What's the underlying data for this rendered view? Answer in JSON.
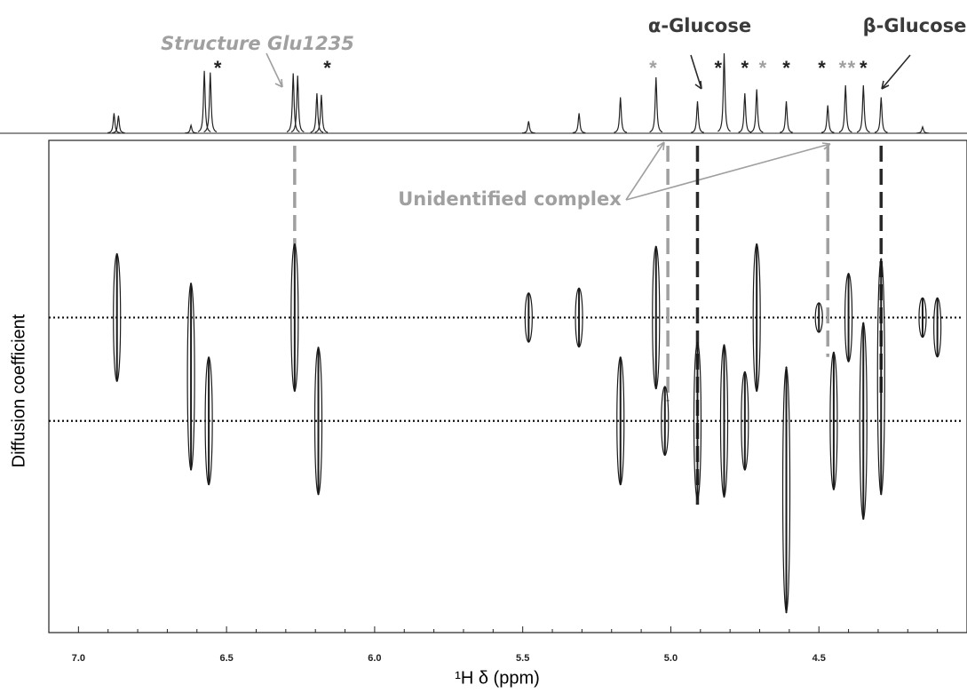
{
  "chart_data": {
    "type": "dosy",
    "x_label": "¹H δ (ppm)",
    "y_label": "Diffusion coefficient",
    "xlim": [
      7.1,
      4.0
    ],
    "xticks": [
      {
        "value": 7,
        "label": "7.0"
      },
      6.5,
      {
        "value": 6,
        "label": "6.0"
      },
      5.5,
      {
        "value": 5,
        "label": "5.0"
      },
      4.5
    ],
    "xminorticks": [
      6.9,
      6.8,
      6.7,
      6.6,
      6.4,
      6.3,
      6.2,
      6.1,
      5.9,
      5.8,
      5.7,
      5.6,
      5.4,
      5.3,
      5.2,
      5.1,
      4.9,
      4.8,
      4.7,
      4.6,
      4.4,
      4.3,
      4.2,
      4.1
    ],
    "ylim": [
      0,
      100
    ],
    "spectrum": {
      "ylim": [
        0,
        100
      ],
      "color": "#222222",
      "x": [
        6.88,
        6.865,
        6.62,
        6.575,
        6.555,
        6.275,
        6.26,
        6.195,
        6.18,
        5.48,
        5.31,
        5.17,
        5.05,
        4.91,
        4.82,
        4.75,
        4.71,
        4.61,
        4.47,
        4.41,
        4.35,
        4.29,
        4.15
      ],
      "values": [
        25,
        22,
        10,
        78,
        76,
        75,
        72,
        50,
        48,
        15,
        25,
        45,
        70,
        40,
        100,
        50,
        55,
        40,
        35,
        60,
        60,
        45,
        8
      ]
    },
    "peaks": {
      "color": "#1a1a1a",
      "x": [
        6.87,
        6.62,
        6.56,
        6.27,
        6.19,
        5.48,
        5.31,
        5.17,
        5.05,
        5.02,
        4.91,
        4.82,
        4.75,
        4.71,
        4.61,
        4.5,
        4.45,
        4.4,
        4.35,
        4.29,
        4.15,
        4.1
      ],
      "y": [
        64,
        52,
        43,
        64,
        43,
        64,
        64,
        43,
        64,
        43,
        43,
        43,
        43,
        64,
        29,
        64,
        43,
        64,
        43,
        52,
        64,
        62
      ],
      "span": [
        26,
        38,
        26,
        30,
        30,
        10,
        12,
        26,
        29,
        14,
        32,
        31,
        20,
        30,
        50,
        6,
        28,
        18,
        40,
        48,
        8,
        12
      ]
    },
    "reference_lines": [
      64,
      43
    ],
    "markers": [
      {
        "x": 6.27,
        "to": 78,
        "color": "#a0a0a0"
      },
      {
        "x": 5.01,
        "to": 47,
        "color": "#a0a0a0"
      },
      {
        "x": 4.91,
        "to": 26,
        "color": "#2a2a2a"
      },
      {
        "x": 4.47,
        "to": 56,
        "color": "#a0a0a0"
      },
      {
        "x": 4.29,
        "to": 48,
        "color": "#2a2a2a"
      }
    ],
    "asterisks": [
      {
        "x": 6.53,
        "text": "*",
        "color": "#222222"
      },
      {
        "x": 6.16,
        "text": "*",
        "color": "#222222"
      },
      {
        "x": 5.06,
        "text": "*",
        "color": "#a0a0a0"
      },
      {
        "x": 4.84,
        "text": "*",
        "color": "#222222"
      },
      {
        "x": 4.75,
        "text": "*",
        "color": "#222222"
      },
      {
        "x": 4.69,
        "text": "*",
        "color": "#a0a0a0"
      },
      {
        "x": 4.61,
        "text": "*",
        "color": "#222222"
      },
      {
        "x": 4.49,
        "text": "*",
        "color": "#222222"
      },
      {
        "x": 4.42,
        "text": "*",
        "color": "#a0a0a0"
      },
      {
        "x": 4.39,
        "text": "*",
        "color": "#a0a0a0"
      },
      {
        "x": 4.35,
        "text": "*",
        "color": "#222222"
      }
    ],
    "annotations": [
      "Structure Glu1235",
      "α-Glucose",
      "β-Glucose",
      "Unidentified complex"
    ]
  }
}
